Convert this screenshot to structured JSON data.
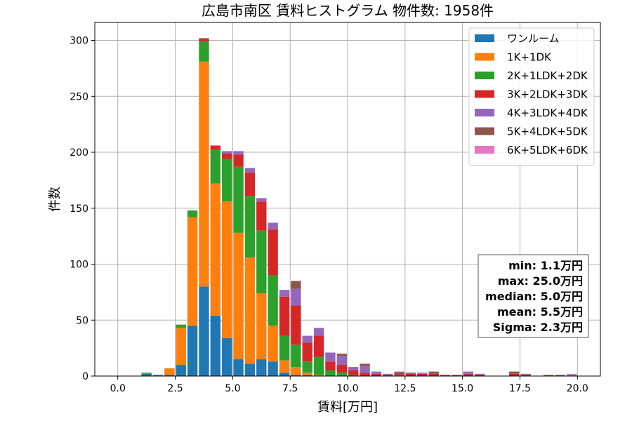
{
  "chart_data": {
    "type": "bar",
    "stacked": true,
    "title": "広島市南区 賃料ヒストグラム 物件数: 1958件",
    "xlabel": "賃料[万円]",
    "ylabel": "件数",
    "xlim": [
      -1.0,
      21.0
    ],
    "ylim": [
      0,
      316
    ],
    "bin_width": 0.5,
    "xticks": [
      0.0,
      2.5,
      5.0,
      7.5,
      10.0,
      12.5,
      15.0,
      17.5,
      20.0
    ],
    "xtick_labels": [
      "0.0",
      "2.5",
      "5.0",
      "7.5",
      "10.0",
      "12.5",
      "15.0",
      "17.5",
      "20.0"
    ],
    "yticks": [
      0,
      50,
      100,
      150,
      200,
      250,
      300
    ],
    "ytick_labels": [
      "0",
      "50",
      "100",
      "150",
      "200",
      "250",
      "300"
    ],
    "grid": true,
    "legend_position": "top-right",
    "bin_starts": [
      1.0,
      1.5,
      2.0,
      2.5,
      3.0,
      3.5,
      4.0,
      4.5,
      5.0,
      5.5,
      6.0,
      6.5,
      7.0,
      7.5,
      8.0,
      8.5,
      9.0,
      9.5,
      10.0,
      10.5,
      11.0,
      11.5,
      12.0,
      12.5,
      13.0,
      13.5,
      14.0,
      14.5,
      15.0,
      15.5,
      16.0,
      16.5,
      17.0,
      17.5,
      18.0,
      18.5,
      19.0,
      19.5
    ],
    "series": [
      {
        "name": "ワンルーム",
        "color": "#1f77b4",
        "values": [
          2,
          1,
          1,
          10,
          45,
          80,
          54,
          34,
          15,
          11,
          15,
          13,
          3,
          1,
          1,
          0,
          0,
          0,
          0,
          0,
          0,
          0,
          0,
          0,
          0,
          0,
          0,
          0,
          0,
          0,
          0,
          0,
          0,
          0,
          0,
          0,
          0,
          0
        ]
      },
      {
        "name": "1K+1DK",
        "color": "#ff7f0e",
        "values": [
          0,
          0,
          6,
          33,
          97,
          201,
          118,
          122,
          113,
          95,
          59,
          32,
          11,
          7,
          2,
          1,
          0,
          0,
          0,
          0,
          0,
          0,
          0,
          0,
          0,
          0,
          0,
          0,
          0,
          0,
          0,
          0,
          0,
          0,
          0,
          0,
          0,
          0
        ]
      },
      {
        "name": "2K+1LDK+2DK",
        "color": "#2ca02c",
        "values": [
          1,
          0,
          0,
          3,
          6,
          18,
          30,
          38,
          59,
          55,
          56,
          45,
          22,
          20,
          10,
          16,
          5,
          3,
          1,
          0,
          0,
          0,
          1,
          0,
          0,
          0,
          0,
          0,
          0,
          0,
          0,
          0,
          0,
          0,
          0,
          0,
          0,
          0
        ]
      },
      {
        "name": "3K+2LDK+3DK",
        "color": "#d62728",
        "values": [
          0,
          0,
          0,
          0,
          0,
          2,
          4,
          5,
          11,
          21,
          26,
          41,
          35,
          35,
          17,
          19,
          8,
          7,
          4,
          3,
          2,
          1,
          2,
          2,
          2,
          2,
          1,
          1,
          2,
          1,
          0,
          0,
          2,
          1,
          0,
          0,
          0,
          0
        ]
      },
      {
        "name": "4K+3LDK+4DK",
        "color": "#9467bd",
        "values": [
          0,
          0,
          0,
          0,
          0,
          0,
          0,
          2,
          3,
          4,
          3,
          6,
          6,
          15,
          6,
          7,
          8,
          8,
          2,
          6,
          2,
          1,
          1,
          0,
          1,
          0,
          0,
          0,
          2,
          1,
          0,
          0,
          0,
          1,
          0,
          0,
          0,
          1
        ]
      },
      {
        "name": "5K+4LDK+5DK",
        "color": "#8c564b",
        "values": [
          0,
          0,
          0,
          0,
          0,
          1,
          0,
          0,
          0,
          0,
          0,
          0,
          0,
          7,
          0,
          0,
          0,
          2,
          1,
          2,
          0,
          0,
          0,
          1,
          0,
          2,
          0,
          0,
          0,
          0,
          0,
          0,
          2,
          0,
          0,
          1,
          1,
          0
        ]
      },
      {
        "name": "6K+5LDK+6DK",
        "color": "#e377c2",
        "values": [
          0,
          0,
          0,
          0,
          0,
          0,
          0,
          0,
          0,
          0,
          0,
          0,
          0,
          0,
          0,
          0,
          0,
          0,
          0,
          0,
          0,
          0,
          0,
          0,
          0,
          0,
          0,
          0,
          0,
          0,
          0,
          0,
          0,
          0,
          0,
          0,
          0,
          1
        ]
      }
    ],
    "annotations": {
      "stats": [
        "min: 1.1万円",
        "max: 25.0万円",
        "median: 5.0万円",
        "mean: 5.5万円",
        "Sigma: 2.3万円"
      ],
      "position": "bottom-right"
    }
  }
}
